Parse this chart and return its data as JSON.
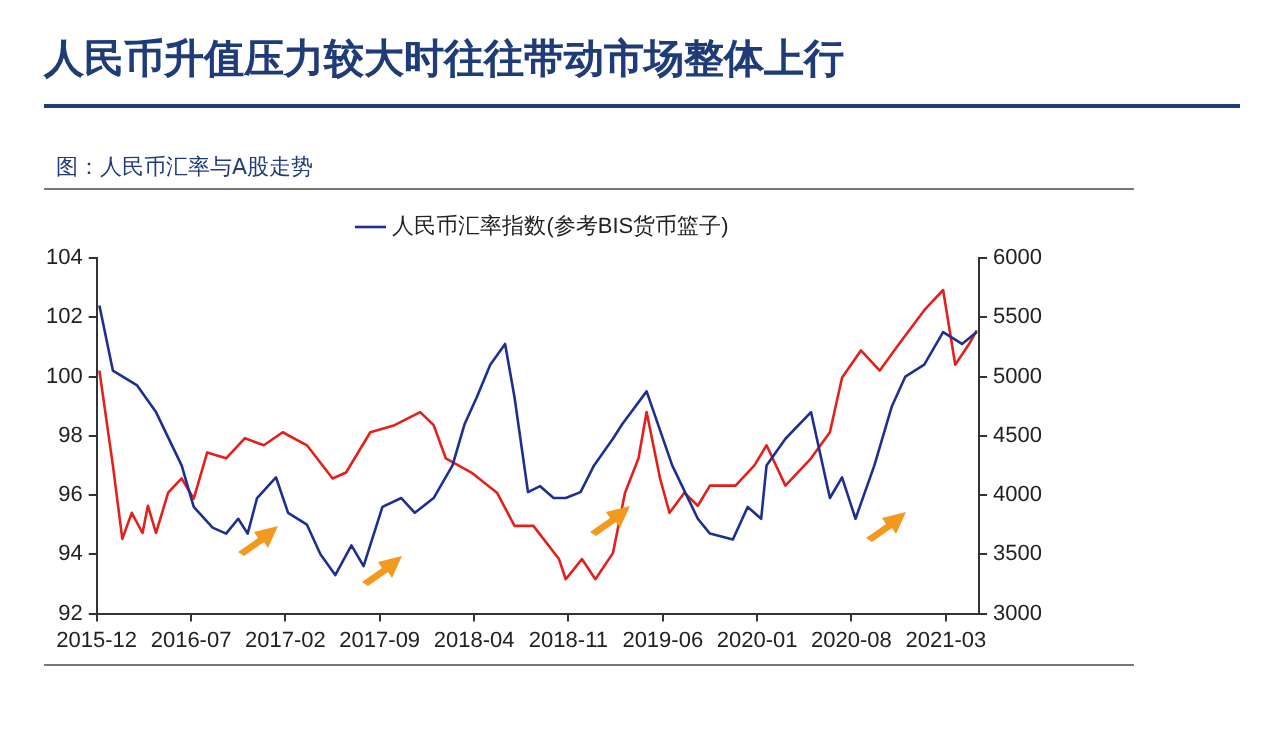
{
  "chart_data": {
    "type": "line",
    "title": "人民币升值压力较大时往往带动市场整体上行",
    "subtitle": "图：人民币汇率与A股走势",
    "xlim": [
      "2015-12",
      "2021-05-15"
    ],
    "xticks": [
      "2015-12",
      "2016-07",
      "2017-02",
      "2017-09",
      "2018-04",
      "2018-11",
      "2019-06",
      "2020-01",
      "2020-08",
      "2021-03"
    ],
    "ylim": [
      92,
      104
    ],
    "yticks": [
      92,
      94,
      96,
      98,
      100,
      102,
      104
    ],
    "y2lim": [
      3000,
      6000
    ],
    "y2ticks": [
      3000,
      3500,
      4000,
      4500,
      5000,
      5500,
      6000
    ],
    "legend": "top",
    "marker": "none",
    "series": [
      {
        "name": "人民币汇率指数(参考BIS货币篮子)",
        "color": "#1f2f8f",
        "x": [
          "2015-12-07",
          "2016-01-07",
          "2016-03-01",
          "2016-04-13",
          "2016-06-10",
          "2016-07-07",
          "2016-08-19",
          "2016-09-19",
          "2016-10-16",
          "2016-11-07",
          "2016-11-28",
          "2017-01-10",
          "2017-02-07",
          "2017-03-19",
          "2017-04-19",
          "2017-05-22",
          "2017-06-28",
          "2017-07-25",
          "2017-09-07",
          "2017-10-19",
          "2017-11-19",
          "2018-01-01",
          "2018-02-13",
          "2018-03-10",
          "2018-04-07",
          "2018-05-07",
          "2018-06-10",
          "2018-07-01",
          "2018-08-01",
          "2018-08-28",
          "2018-09-28",
          "2018-10-25",
          "2018-11-28",
          "2018-12-28",
          "2019-02-10",
          "2019-03-01",
          "2019-04-25",
          "2019-06-22",
          "2019-08-19",
          "2019-09-16",
          "2019-11-07",
          "2019-12-10",
          "2020-01-10",
          "2020-01-22",
          "2020-03-04",
          "2020-05-01",
          "2020-06-13",
          "2020-07-10",
          "2020-08-10",
          "2020-09-22",
          "2020-11-01",
          "2020-12-01",
          "2021-01-13",
          "2021-02-25",
          "2021-04-07",
          "2021-05-10"
        ],
        "values": [
          102.4,
          100.2,
          99.7,
          98.8,
          97.0,
          95.6,
          94.9,
          94.7,
          95.2,
          94.7,
          95.9,
          96.6,
          95.4,
          95.0,
          94.0,
          93.3,
          94.3,
          93.6,
          95.6,
          95.9,
          95.4,
          95.9,
          97.0,
          98.4,
          99.3,
          100.4,
          101.1,
          99.3,
          96.1,
          96.3,
          95.9,
          95.9,
          96.1,
          97.0,
          97.9,
          98.4,
          99.5,
          97.0,
          95.2,
          94.7,
          94.5,
          95.6,
          95.2,
          97.0,
          97.9,
          98.8,
          95.9,
          96.6,
          95.2,
          97.0,
          99.0,
          100.0,
          100.4,
          101.5,
          101.1,
          101.5
        ]
      },
      {
        "color": "#e3201b",
        "axis": "y2",
        "x": [
          "2015-12-07",
          "2016-01-07",
          "2016-01-28",
          "2016-02-19",
          "2016-03-13",
          "2016-03-25",
          "2016-04-13",
          "2016-05-10",
          "2016-06-10",
          "2016-07-07",
          "2016-08-07",
          "2016-09-19",
          "2016-11-01",
          "2016-12-13",
          "2017-01-25",
          "2017-03-19",
          "2017-05-16",
          "2017-06-16",
          "2017-08-10",
          "2017-10-04",
          "2017-12-01",
          "2018-01-01",
          "2018-01-28",
          "2018-03-25",
          "2018-05-22",
          "2018-07-01",
          "2018-08-13",
          "2018-10-10",
          "2018-10-25",
          "2018-12-01",
          "2019-01-01",
          "2019-02-10",
          "2019-03-07",
          "2019-04-07",
          "2019-04-25",
          "2019-05-25",
          "2019-06-16",
          "2019-07-19",
          "2019-08-19",
          "2019-09-16",
          "2019-11-13",
          "2019-12-25",
          "2020-01-22",
          "2020-03-04",
          "2020-05-01",
          "2020-06-13",
          "2020-07-10",
          "2020-08-22",
          "2020-10-04",
          "2020-11-16",
          "2021-01-13",
          "2021-02-25",
          "2021-03-22",
          "2021-04-22",
          "2021-05-10"
        ],
        "values": [
          5050,
          4250,
          3630,
          3850,
          3680,
          3910,
          3680,
          4020,
          4140,
          3970,
          4360,
          4310,
          4480,
          4420,
          4530,
          4420,
          4140,
          4190,
          4530,
          4590,
          4700,
          4590,
          4310,
          4190,
          4020,
          3740,
          3740,
          3460,
          3290,
          3460,
          3290,
          3510,
          4020,
          4310,
          4700,
          4140,
          3850,
          4020,
          3910,
          4080,
          4080,
          4250,
          4420,
          4080,
          4310,
          4530,
          4990,
          5220,
          5050,
          5270,
          5560,
          5730,
          5100,
          5270,
          5390
        ]
      }
    ]
  }
}
